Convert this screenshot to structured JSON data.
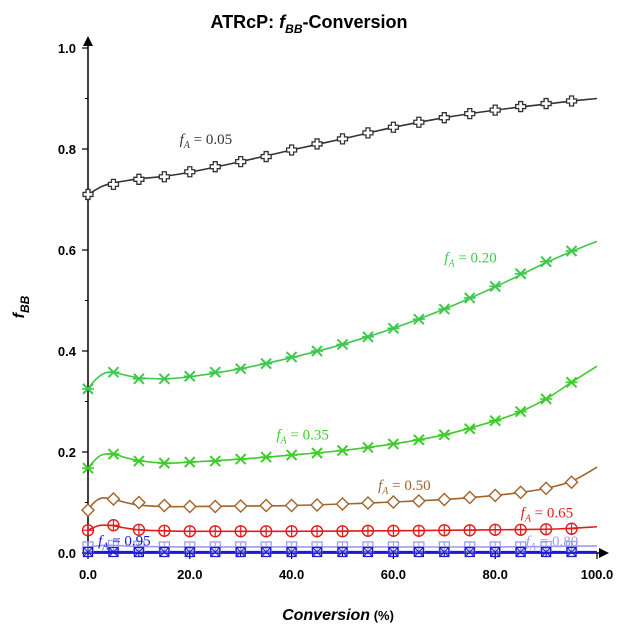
{
  "chart_data": {
    "type": "line",
    "title_main": "ATRcP: ",
    "title_f": "f",
    "title_sub": "BB",
    "title_rest": "-Conversion",
    "xlabel": "Conversion",
    "xlabel_unit": " (%)",
    "ylabel_f": "f",
    "ylabel_sub": "BB",
    "xlim": [
      0,
      100
    ],
    "ylim": [
      0,
      1.0
    ],
    "x_ticks": [
      "0.0",
      "20.0",
      "40.0",
      "60.0",
      "80.0",
      "100.0"
    ],
    "y_ticks": [
      "0.0",
      "0.2",
      "0.4",
      "0.6",
      "0.8",
      "1.0"
    ],
    "x_tick_values": [
      0,
      20,
      40,
      60,
      80,
      100
    ],
    "y_tick_values": [
      0,
      0.2,
      0.4,
      0.6,
      0.8,
      1.0
    ],
    "marker_x": [
      0,
      5,
      10,
      15,
      20,
      25,
      30,
      35,
      40,
      45,
      50,
      55,
      60,
      65,
      70,
      75,
      80,
      85,
      90,
      95
    ],
    "series": [
      {
        "name": "fA = 0.05",
        "label_f": "f",
        "label_sub": "A",
        "label_rest": " = 0.05",
        "label_at": [
          18,
          0.81
        ],
        "color": "#333333",
        "marker": "plus-square",
        "values": [
          0.71,
          0.73,
          0.74,
          0.745,
          0.755,
          0.765,
          0.775,
          0.785,
          0.798,
          0.81,
          0.82,
          0.832,
          0.843,
          0.853,
          0.862,
          0.87,
          0.877,
          0.884,
          0.89,
          0.895
        ],
        "curve_x": [
          0,
          1,
          2,
          3,
          5,
          8,
          10,
          15,
          20,
          30,
          40,
          50,
          60,
          70,
          80,
          90,
          95,
          100
        ],
        "curve_y": [
          0.71,
          0.716,
          0.722,
          0.727,
          0.733,
          0.738,
          0.741,
          0.746,
          0.754,
          0.775,
          0.798,
          0.82,
          0.843,
          0.862,
          0.877,
          0.889,
          0.895,
          0.9
        ]
      },
      {
        "name": "fA = 0.20",
        "label_f": "f",
        "label_sub": "A",
        "label_rest": " = 0.20",
        "label_at": [
          70,
          0.575
        ],
        "color": "#3ec94e",
        "marker": "asterisk",
        "values": [
          0.325,
          0.358,
          0.345,
          0.345,
          0.35,
          0.358,
          0.365,
          0.375,
          0.388,
          0.4,
          0.413,
          0.428,
          0.445,
          0.463,
          0.483,
          0.505,
          0.528,
          0.553,
          0.577,
          0.598
        ],
        "curve_x": [
          0,
          1,
          2,
          3,
          4,
          5,
          7,
          10,
          15,
          20,
          30,
          40,
          50,
          60,
          70,
          80,
          90,
          95,
          100
        ],
        "curve_y": [
          0.325,
          0.338,
          0.348,
          0.355,
          0.358,
          0.358,
          0.353,
          0.347,
          0.345,
          0.349,
          0.365,
          0.387,
          0.413,
          0.445,
          0.483,
          0.527,
          0.575,
          0.597,
          0.617
        ]
      },
      {
        "name": "fA = 0.35",
        "label_f": "f",
        "label_sub": "A",
        "label_rest": " = 0.35",
        "label_at": [
          37,
          0.225
        ],
        "color": "#3ecc2a",
        "marker": "asterisk",
        "values": [
          0.168,
          0.196,
          0.182,
          0.178,
          0.18,
          0.182,
          0.186,
          0.19,
          0.194,
          0.198,
          0.203,
          0.209,
          0.216,
          0.224,
          0.234,
          0.246,
          0.262,
          0.28,
          0.305,
          0.338
        ],
        "curve_x": [
          0,
          1,
          2,
          3,
          5,
          7,
          10,
          15,
          20,
          30,
          40,
          50,
          60,
          70,
          80,
          85,
          90,
          95,
          100
        ],
        "curve_y": [
          0.168,
          0.18,
          0.19,
          0.195,
          0.196,
          0.19,
          0.183,
          0.178,
          0.18,
          0.186,
          0.194,
          0.203,
          0.216,
          0.234,
          0.262,
          0.28,
          0.305,
          0.338,
          0.37
        ]
      },
      {
        "name": "fA = 0.50",
        "label_f": "f",
        "label_sub": "A",
        "label_rest": " = 0.50",
        "label_at": [
          57,
          0.125
        ],
        "color": "#a0642d",
        "marker": "diamond",
        "values": [
          0.085,
          0.107,
          0.1,
          0.094,
          0.092,
          0.092,
          0.093,
          0.094,
          0.094,
          0.095,
          0.097,
          0.099,
          0.101,
          0.103,
          0.106,
          0.11,
          0.114,
          0.12,
          0.128,
          0.14
        ],
        "curve_x": [
          0,
          1,
          2,
          3,
          5,
          7,
          10,
          15,
          20,
          30,
          40,
          50,
          60,
          70,
          80,
          85,
          90,
          95,
          100
        ],
        "curve_y": [
          0.085,
          0.098,
          0.106,
          0.109,
          0.107,
          0.101,
          0.095,
          0.092,
          0.092,
          0.093,
          0.094,
          0.097,
          0.101,
          0.106,
          0.114,
          0.12,
          0.128,
          0.142,
          0.17
        ]
      },
      {
        "name": "fA = 0.65",
        "label_f": "f",
        "label_sub": "A",
        "label_rest": " = 0.65",
        "label_at": [
          85,
          0.07
        ],
        "color": "#e31b1b",
        "marker": "circle-plus",
        "values": [
          0.045,
          0.055,
          0.046,
          0.044,
          0.043,
          0.043,
          0.043,
          0.043,
          0.043,
          0.043,
          0.043,
          0.044,
          0.044,
          0.044,
          0.045,
          0.045,
          0.046,
          0.046,
          0.047,
          0.048
        ],
        "curve_x": [
          0,
          1,
          2,
          3,
          5,
          7,
          10,
          15,
          20,
          40,
          60,
          80,
          90,
          95,
          100
        ],
        "curve_y": [
          0.045,
          0.05,
          0.054,
          0.055,
          0.054,
          0.05,
          0.046,
          0.044,
          0.043,
          0.043,
          0.044,
          0.046,
          0.047,
          0.049,
          0.052
        ]
      },
      {
        "name": "fA = 0.80",
        "label_f": "f",
        "label_sub": "A",
        "label_rest": " = 0.80",
        "label_at": [
          86,
          0.014
        ],
        "color": "#9e9cf0",
        "marker": "square-plus",
        "values": [
          0.012,
          0.015,
          0.013,
          0.012,
          0.012,
          0.012,
          0.012,
          0.012,
          0.012,
          0.012,
          0.012,
          0.012,
          0.012,
          0.012,
          0.012,
          0.012,
          0.012,
          0.012,
          0.013,
          0.013
        ],
        "curve_x": [
          0,
          3,
          5,
          10,
          20,
          40,
          60,
          80,
          100
        ],
        "curve_y": [
          0.012,
          0.015,
          0.015,
          0.013,
          0.012,
          0.012,
          0.012,
          0.012,
          0.014
        ]
      },
      {
        "name": "fA = 0.95",
        "label_f": "f",
        "label_sub": "A",
        "label_rest": " = 0.95",
        "label_at": [
          2,
          0.015
        ],
        "color": "#1a1ad6",
        "marker": "x-square",
        "values": [
          0.002,
          0.002,
          0.002,
          0.002,
          0.002,
          0.002,
          0.002,
          0.002,
          0.002,
          0.002,
          0.002,
          0.002,
          0.002,
          0.002,
          0.002,
          0.002,
          0.002,
          0.002,
          0.002,
          0.002
        ],
        "curve_x": [
          0,
          20,
          40,
          60,
          80,
          100
        ],
        "curve_y": [
          0.002,
          0.002,
          0.002,
          0.002,
          0.002,
          0.002
        ]
      }
    ]
  }
}
